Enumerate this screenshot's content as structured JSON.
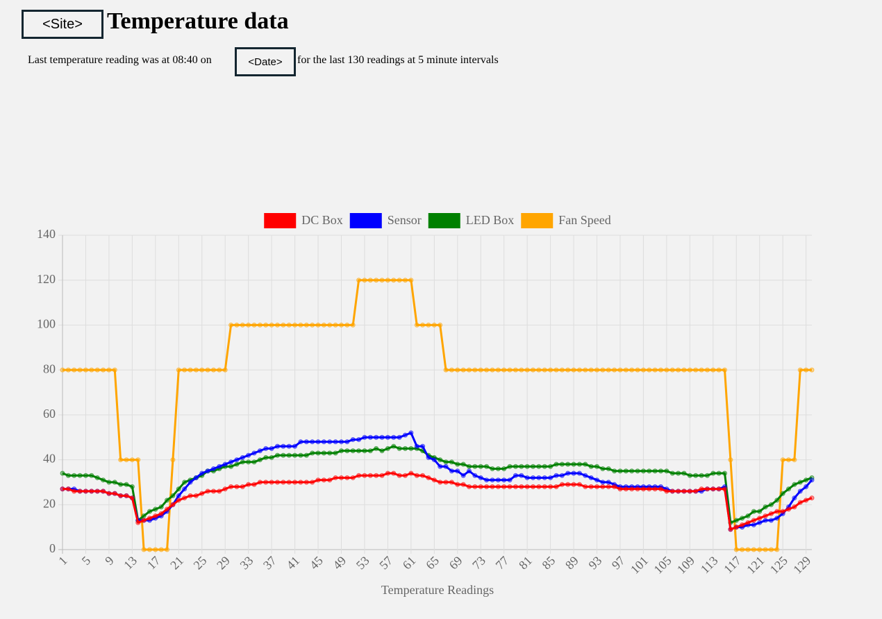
{
  "header": {
    "site": "<Site>",
    "title": "Temperature data"
  },
  "subtitle": {
    "before": "Last temperature reading was at 08:40 on",
    "date": "<Date>",
    "after": "for the last 130 readings at 5 minute intervals"
  },
  "chart_data": {
    "type": "line",
    "x_label": "Temperature Readings",
    "categories": [
      1,
      null,
      null,
      null,
      5,
      null,
      null,
      null,
      9,
      null,
      null,
      null,
      13,
      null,
      null,
      null,
      17,
      null,
      null,
      null,
      21,
      null,
      null,
      null,
      25,
      null,
      null,
      null,
      29,
      null,
      null,
      null,
      33,
      null,
      null,
      null,
      37,
      null,
      null,
      null,
      41,
      null,
      null,
      null,
      45,
      null,
      null,
      null,
      49,
      null,
      null,
      null,
      53,
      null,
      null,
      null,
      57,
      null,
      null,
      null,
      61,
      null,
      null,
      null,
      65,
      null,
      null,
      null,
      69,
      null,
      null,
      null,
      73,
      null,
      null,
      null,
      77,
      null,
      null,
      null,
      81,
      null,
      null,
      null,
      85,
      null,
      null,
      null,
      89,
      null,
      null,
      null,
      93,
      null,
      null,
      null,
      97,
      null,
      null,
      null,
      101,
      null,
      null,
      null,
      105,
      null,
      null,
      null,
      109,
      null,
      null,
      null,
      113,
      null,
      null,
      null,
      117,
      null,
      null,
      null,
      121,
      null,
      null,
      null,
      125,
      null,
      null,
      null,
      129,
      null
    ],
    "ylim": [
      0,
      140
    ],
    "yticks": [
      0,
      20,
      40,
      60,
      80,
      100,
      120,
      140
    ],
    "grid": true,
    "legend": "top",
    "series": [
      {
        "name": "DC Box",
        "color": "#ff0000",
        "values": [
          27,
          27,
          26,
          26,
          26,
          26,
          26,
          26,
          25,
          25,
          24,
          24,
          23,
          12,
          13,
          14,
          15,
          16,
          18,
          20,
          22,
          23,
          24,
          24,
          25,
          26,
          26,
          26,
          27,
          28,
          28,
          28,
          29,
          29,
          30,
          30,
          30,
          30,
          30,
          30,
          30,
          30,
          30,
          30,
          31,
          31,
          31,
          32,
          32,
          32,
          32,
          33,
          33,
          33,
          33,
          33,
          34,
          34,
          33,
          33,
          34,
          33,
          33,
          32,
          31,
          30,
          30,
          30,
          29,
          29,
          28,
          28,
          28,
          28,
          28,
          28,
          28,
          28,
          28,
          28,
          28,
          28,
          28,
          28,
          28,
          28,
          29,
          29,
          29,
          29,
          28,
          28,
          28,
          28,
          28,
          28,
          27,
          27,
          27,
          27,
          27,
          27,
          27,
          27,
          26,
          26,
          26,
          26,
          26,
          26,
          27,
          27,
          27,
          27,
          27,
          9,
          10,
          11,
          12,
          13,
          14,
          15,
          16,
          17,
          17,
          18,
          19,
          21,
          22,
          23
        ]
      },
      {
        "name": "Sensor",
        "color": "#0000ff",
        "values": [
          27,
          27,
          27,
          26,
          26,
          26,
          26,
          26,
          25,
          25,
          24,
          24,
          23,
          13,
          13,
          13,
          14,
          15,
          17,
          20,
          24,
          27,
          30,
          32,
          34,
          35,
          36,
          37,
          38,
          39,
          40,
          41,
          42,
          43,
          44,
          45,
          45,
          46,
          46,
          46,
          46,
          48,
          48,
          48,
          48,
          48,
          48,
          48,
          48,
          48,
          49,
          49,
          50,
          50,
          50,
          50,
          50,
          50,
          50,
          51,
          52,
          46,
          46,
          41,
          40,
          37,
          37,
          35,
          35,
          33,
          35,
          33,
          32,
          31,
          31,
          31,
          31,
          31,
          33,
          33,
          32,
          32,
          32,
          32,
          32,
          33,
          33,
          34,
          34,
          34,
          33,
          32,
          31,
          30,
          30,
          29,
          28,
          28,
          28,
          28,
          28,
          28,
          28,
          28,
          27,
          26,
          26,
          26,
          26,
          26,
          26,
          27,
          27,
          27,
          28,
          9,
          10,
          10,
          11,
          11,
          12,
          13,
          13,
          14,
          16,
          19,
          23,
          26,
          28,
          31
        ]
      },
      {
        "name": "LED Box",
        "color": "#008000",
        "values": [
          34,
          33,
          33,
          33,
          33,
          33,
          32,
          31,
          30,
          30,
          29,
          29,
          28,
          13,
          15,
          17,
          18,
          19,
          22,
          24,
          27,
          30,
          31,
          32,
          33,
          35,
          35,
          36,
          37,
          37,
          38,
          39,
          39,
          39,
          40,
          41,
          41,
          42,
          42,
          42,
          42,
          42,
          42,
          43,
          43,
          43,
          43,
          43,
          44,
          44,
          44,
          44,
          44,
          44,
          45,
          44,
          45,
          46,
          45,
          45,
          45,
          45,
          44,
          42,
          41,
          40,
          39,
          39,
          38,
          38,
          37,
          37,
          37,
          37,
          36,
          36,
          36,
          37,
          37,
          37,
          37,
          37,
          37,
          37,
          37,
          38,
          38,
          38,
          38,
          38,
          38,
          37,
          37,
          36,
          36,
          35,
          35,
          35,
          35,
          35,
          35,
          35,
          35,
          35,
          35,
          34,
          34,
          34,
          33,
          33,
          33,
          33,
          34,
          34,
          34,
          12,
          13,
          14,
          15,
          17,
          17,
          19,
          20,
          22,
          25,
          27,
          29,
          30,
          31,
          32
        ]
      },
      {
        "name": "Fan Speed",
        "color": "#ffa500",
        "values": [
          80,
          80,
          80,
          80,
          80,
          80,
          80,
          80,
          80,
          80,
          40,
          40,
          40,
          40,
          0,
          0,
          0,
          0,
          0,
          40,
          80,
          80,
          80,
          80,
          80,
          80,
          80,
          80,
          80,
          100,
          100,
          100,
          100,
          100,
          100,
          100,
          100,
          100,
          100,
          100,
          100,
          100,
          100,
          100,
          100,
          100,
          100,
          100,
          100,
          100,
          100,
          120,
          120,
          120,
          120,
          120,
          120,
          120,
          120,
          120,
          120,
          100,
          100,
          100,
          100,
          100,
          80,
          80,
          80,
          80,
          80,
          80,
          80,
          80,
          80,
          80,
          80,
          80,
          80,
          80,
          80,
          80,
          80,
          80,
          80,
          80,
          80,
          80,
          80,
          80,
          80,
          80,
          80,
          80,
          80,
          80,
          80,
          80,
          80,
          80,
          80,
          80,
          80,
          80,
          80,
          80,
          80,
          80,
          80,
          80,
          80,
          80,
          80,
          80,
          80,
          40,
          0,
          0,
          0,
          0,
          0,
          0,
          0,
          0,
          40,
          40,
          40,
          80,
          80,
          80
        ]
      }
    ]
  }
}
